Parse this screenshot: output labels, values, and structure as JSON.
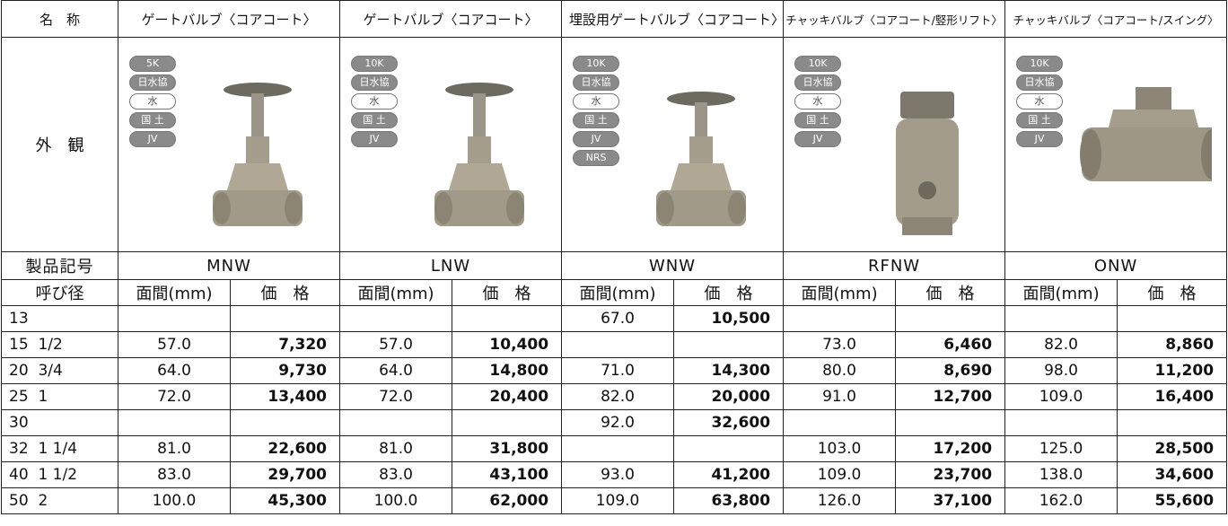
{
  "header": {
    "name_label": "名　称",
    "appearance_label": "外　観",
    "code_label": "製品記号",
    "size_label": "呼び径",
    "length_label": "面間(mm)",
    "price_label": "価　格"
  },
  "products": [
    {
      "name": "ゲートバルブ〈コアコート〉",
      "code": "MNW",
      "badges": [
        "5K",
        "日水協",
        "水",
        "国 土",
        "JV"
      ]
    },
    {
      "name": "ゲートバルブ〈コアコート〉",
      "code": "LNW",
      "badges": [
        "10K",
        "日水協",
        "水",
        "国 土",
        "JV"
      ]
    },
    {
      "name": "埋設用ゲートバルブ〈コアコート〉",
      "code": "WNW",
      "badges": [
        "10K",
        "日水協",
        "水",
        "国 土",
        "JV",
        "NRS"
      ]
    },
    {
      "name": "チャッキバルブ〈コアコート/竪形リフト〉",
      "code": "RFNW",
      "badges": [
        "10K",
        "日水協",
        "水",
        "国 土",
        "JV"
      ]
    },
    {
      "name": "チャッキバルブ〈コアコート/スイング〉",
      "code": "ONW",
      "badges": [
        "10K",
        "日水協",
        "水",
        "国 土",
        "JV"
      ]
    }
  ],
  "table": {
    "rows": [
      [
        "13",
        null,
        null,
        null,
        null,
        "67.0",
        "10,500",
        null,
        null,
        null,
        null
      ],
      [
        "15  1/2",
        "57.0",
        "7,320",
        "57.0",
        "10,400",
        null,
        null,
        "73.0",
        "6,460",
        "82.0",
        "8,860"
      ],
      [
        "20  3/4",
        "64.0",
        "9,730",
        "64.0",
        "14,800",
        "71.0",
        "14,300",
        "80.0",
        "8,690",
        "98.0",
        "11,200"
      ],
      [
        "25  1",
        "72.0",
        "13,400",
        "72.0",
        "20,400",
        "82.0",
        "20,000",
        "91.0",
        "12,700",
        "109.0",
        "16,400"
      ],
      [
        "30",
        null,
        null,
        null,
        null,
        "92.0",
        "32,600",
        null,
        null,
        null,
        null
      ],
      [
        "32  1 1/4",
        "81.0",
        "22,600",
        "81.0",
        "31,800",
        null,
        null,
        "103.0",
        "17,200",
        "125.0",
        "28,500"
      ],
      [
        "40  1 1/2",
        "83.0",
        "29,700",
        "83.0",
        "43,100",
        "93.0",
        "41,200",
        "109.0",
        "23,700",
        "138.0",
        "34,600"
      ],
      [
        "50  2",
        "100.0",
        "45,300",
        "100.0",
        "62,000",
        "109.0",
        "63,800",
        "126.0",
        "37,100",
        "162.0",
        "55,600"
      ]
    ]
  }
}
